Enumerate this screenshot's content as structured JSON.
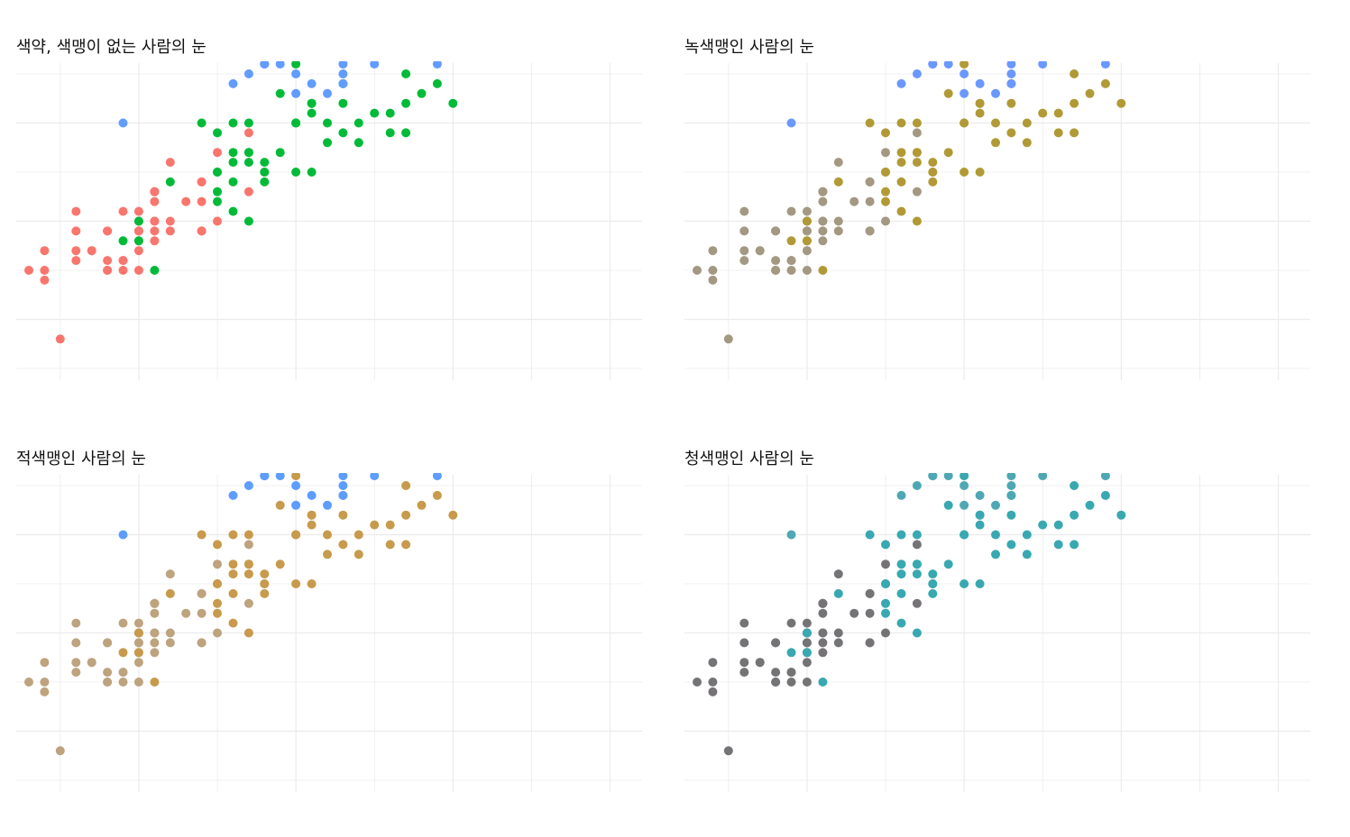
{
  "colors": {
    "normal": [
      "#F8766D",
      "#00BA38",
      "#619CFF"
    ],
    "deutan": [
      "#A39882",
      "#B19A36",
      "#6B98FF"
    ],
    "protan": [
      "#BDA37E",
      "#C79A4C",
      "#5C9DFF"
    ],
    "tritan": [
      "#757376",
      "#38A8B1",
      "#4EA8B4"
    ],
    "grid": "#EBEBEB"
  },
  "chart_data": [
    {
      "type": "scatter",
      "title": "색약, 색맹이 없는 사람의 눈",
      "palette": "normal"
    },
    {
      "type": "scatter",
      "title": "녹색맹인 사람의 눈",
      "palette": "deutan"
    },
    {
      "type": "scatter",
      "title": "적색맹인 사람의 눈",
      "palette": "protan"
    },
    {
      "type": "scatter",
      "title": "청색맹인 사람의 눈",
      "palette": "tritan"
    }
  ],
  "series": [
    {
      "group": 0,
      "points": [
        [
          5.1,
          3.5
        ],
        [
          4.9,
          3.0
        ],
        [
          4.7,
          3.2
        ],
        [
          4.6,
          3.1
        ],
        [
          5.0,
          3.6
        ],
        [
          5.4,
          3.9
        ],
        [
          4.6,
          3.4
        ],
        [
          5.0,
          3.4
        ],
        [
          4.4,
          2.9
        ],
        [
          4.9,
          3.1
        ],
        [
          5.4,
          3.7
        ],
        [
          4.8,
          3.4
        ],
        [
          4.8,
          3.0
        ],
        [
          4.3,
          3.0
        ],
        [
          5.8,
          4.0
        ],
        [
          5.7,
          4.4
        ],
        [
          5.4,
          3.9
        ],
        [
          5.1,
          3.5
        ],
        [
          5.7,
          3.8
        ],
        [
          5.1,
          3.8
        ],
        [
          5.4,
          3.4
        ],
        [
          5.1,
          3.7
        ],
        [
          4.6,
          3.6
        ],
        [
          5.1,
          3.3
        ],
        [
          4.8,
          3.4
        ],
        [
          5.0,
          3.0
        ],
        [
          5.0,
          3.4
        ],
        [
          5.2,
          3.5
        ],
        [
          5.2,
          3.4
        ],
        [
          4.7,
          3.2
        ],
        [
          4.8,
          3.1
        ],
        [
          5.4,
          3.4
        ],
        [
          5.2,
          4.1
        ],
        [
          5.5,
          4.2
        ],
        [
          4.9,
          3.1
        ],
        [
          5.0,
          3.2
        ],
        [
          5.5,
          3.5
        ],
        [
          4.9,
          3.6
        ],
        [
          4.4,
          3.0
        ],
        [
          5.1,
          3.4
        ],
        [
          5.0,
          3.5
        ],
        [
          4.5,
          2.3
        ],
        [
          4.4,
          3.2
        ],
        [
          5.0,
          3.5
        ],
        [
          5.1,
          3.8
        ],
        [
          4.8,
          3.0
        ],
        [
          5.1,
          3.8
        ],
        [
          4.6,
          3.2
        ],
        [
          5.3,
          3.7
        ],
        [
          5.0,
          3.3
        ]
      ]
    },
    {
      "group": 1,
      "points": [
        [
          7.0,
          4.7
        ],
        [
          6.4,
          4.5
        ],
        [
          6.9,
          4.9
        ],
        [
          5.5,
          4.0
        ],
        [
          6.5,
          4.6
        ],
        [
          5.7,
          4.5
        ],
        [
          6.3,
          4.7
        ],
        [
          4.9,
          3.3
        ],
        [
          6.6,
          4.6
        ],
        [
          5.2,
          3.9
        ],
        [
          5.0,
          3.5
        ],
        [
          5.9,
          4.2
        ],
        [
          6.0,
          4.0
        ],
        [
          6.1,
          4.7
        ],
        [
          5.6,
          3.6
        ],
        [
          6.7,
          4.4
        ],
        [
          5.6,
          4.5
        ],
        [
          5.8,
          4.1
        ],
        [
          6.2,
          4.5
        ],
        [
          5.6,
          3.9
        ],
        [
          5.9,
          4.8
        ],
        [
          6.1,
          4.0
        ],
        [
          6.3,
          4.9
        ],
        [
          6.1,
          4.7
        ],
        [
          6.4,
          4.3
        ],
        [
          6.6,
          4.4
        ],
        [
          6.8,
          4.8
        ],
        [
          6.7,
          5.0
        ],
        [
          6.0,
          4.5
        ],
        [
          5.7,
          3.5
        ],
        [
          5.5,
          3.8
        ],
        [
          5.5,
          3.7
        ],
        [
          5.8,
          3.9
        ],
        [
          6.0,
          5.1
        ],
        [
          5.4,
          4.5
        ],
        [
          6.0,
          4.5
        ],
        [
          6.7,
          4.7
        ],
        [
          6.3,
          4.4
        ],
        [
          5.6,
          4.1
        ],
        [
          5.5,
          4.0
        ],
        [
          5.5,
          4.4
        ],
        [
          6.1,
          4.6
        ],
        [
          5.8,
          4.0
        ],
        [
          5.0,
          3.3
        ],
        [
          5.6,
          4.2
        ],
        [
          5.7,
          4.2
        ],
        [
          5.7,
          4.2
        ],
        [
          6.2,
          4.3
        ],
        [
          5.1,
          3.0
        ],
        [
          5.7,
          4.1
        ]
      ]
    },
    {
      "group": 2,
      "points": [
        [
          6.3,
          6.0
        ],
        [
          5.8,
          5.1
        ],
        [
          7.1,
          5.9
        ],
        [
          6.3,
          5.6
        ],
        [
          6.5,
          5.8
        ],
        [
          7.6,
          6.6
        ],
        [
          4.9,
          4.5
        ],
        [
          7.3,
          6.3
        ],
        [
          6.7,
          5.8
        ],
        [
          7.2,
          6.1
        ],
        [
          6.5,
          5.1
        ],
        [
          6.4,
          5.3
        ],
        [
          6.8,
          5.5
        ],
        [
          5.7,
          5.0
        ],
        [
          5.8,
          5.1
        ],
        [
          6.4,
          5.3
        ],
        [
          6.5,
          5.5
        ],
        [
          7.7,
          6.7
        ],
        [
          7.7,
          6.9
        ],
        [
          6.0,
          5.0
        ],
        [
          6.9,
          5.7
        ],
        [
          5.6,
          4.9
        ],
        [
          7.7,
          6.7
        ],
        [
          6.3,
          4.9
        ],
        [
          6.7,
          5.7
        ],
        [
          7.2,
          6.0
        ],
        [
          6.2,
          4.8
        ],
        [
          6.1,
          4.9
        ],
        [
          6.4,
          5.6
        ],
        [
          7.2,
          5.8
        ],
        [
          7.4,
          6.1
        ],
        [
          7.9,
          6.4
        ],
        [
          6.4,
          5.6
        ],
        [
          6.3,
          5.1
        ],
        [
          6.1,
          5.6
        ],
        [
          7.7,
          6.1
        ],
        [
          6.3,
          5.6
        ],
        [
          6.4,
          5.5
        ],
        [
          6.0,
          4.8
        ],
        [
          6.9,
          5.4
        ],
        [
          6.7,
          5.6
        ],
        [
          6.9,
          5.1
        ],
        [
          5.8,
          5.1
        ],
        [
          6.8,
          5.9
        ],
        [
          6.7,
          5.7
        ],
        [
          6.7,
          5.2
        ],
        [
          6.3,
          5.0
        ],
        [
          6.5,
          5.2
        ],
        [
          6.2,
          5.4
        ],
        [
          5.9,
          5.1
        ]
      ]
    }
  ]
}
